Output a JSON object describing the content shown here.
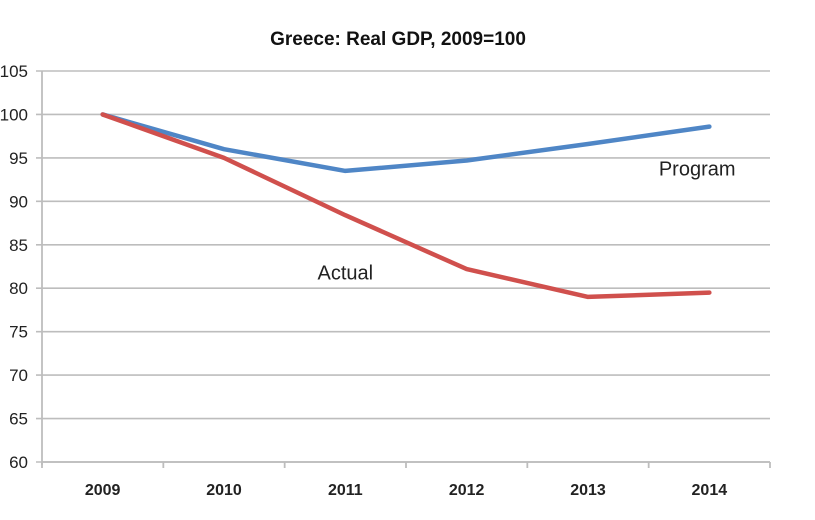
{
  "chart_data": {
    "type": "line",
    "title": "Greece: Real GDP, 2009=100",
    "xlabel": "",
    "ylabel": "",
    "categories": [
      "2009",
      "2010",
      "2011",
      "2012",
      "2013",
      "2014"
    ],
    "ylim": [
      60,
      105
    ],
    "yticks": [
      "60",
      "65",
      "70",
      "75",
      "80",
      "85",
      "90",
      "95",
      "100",
      "105"
    ],
    "grid": true,
    "legend": "none (inline annotations)",
    "series": [
      {
        "name": "Program",
        "color": "#4f86c6",
        "values": [
          100,
          96.0,
          93.5,
          94.7,
          96.6,
          98.6
        ]
      },
      {
        "name": "Actual",
        "color": "#d0504d",
        "values": [
          100,
          95.0,
          88.4,
          82.2,
          79.0,
          79.5
        ]
      }
    ],
    "annotations": [
      {
        "text": "Program",
        "series": "Program",
        "x": "2013.9",
        "y": 93
      },
      {
        "text": "Actual",
        "series": "Actual",
        "x": "2011.0",
        "y": 81
      }
    ]
  }
}
